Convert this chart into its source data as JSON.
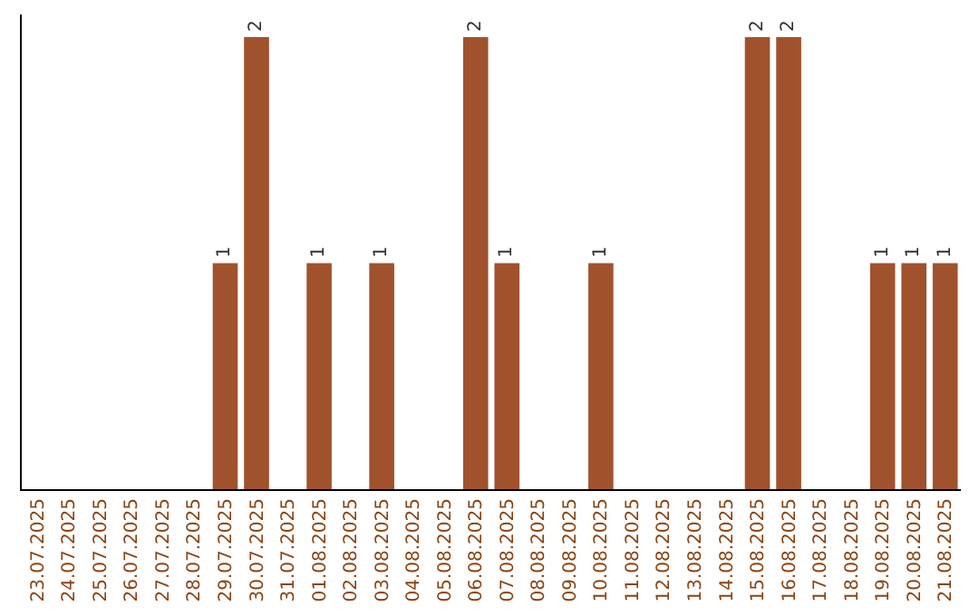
{
  "chart_data": {
    "type": "bar",
    "categories": [
      "23.07.2025",
      "24.07.2025",
      "25.07.2025",
      "26.07.2025",
      "27.07.2025",
      "28.07.2025",
      "29.07.2025",
      "30.07.2025",
      "31.07.2025",
      "01.08.2025",
      "02.08.2025",
      "03.08.2025",
      "04.08.2025",
      "05.08.2025",
      "06.08.2025",
      "07.08.2025",
      "08.08.2025",
      "09.08.2025",
      "10.08.2025",
      "11.08.2025",
      "12.08.2025",
      "13.08.2025",
      "14.08.2025",
      "15.08.2025",
      "16.08.2025",
      "17.08.2025",
      "18.08.2025",
      "19.08.2025",
      "20.08.2025",
      "21.08.2025"
    ],
    "values": [
      0,
      0,
      0,
      0,
      0,
      0,
      1,
      2,
      0,
      1,
      0,
      1,
      0,
      0,
      2,
      1,
      0,
      0,
      1,
      0,
      0,
      0,
      0,
      2,
      2,
      0,
      0,
      1,
      1,
      1
    ],
    "value_labels": [
      null,
      null,
      null,
      null,
      null,
      null,
      "1",
      "2",
      null,
      "1",
      null,
      "1",
      null,
      null,
      "2",
      "1",
      null,
      null,
      "1",
      null,
      null,
      null,
      null,
      "2",
      "2",
      null,
      null,
      "1",
      "1",
      "1"
    ],
    "color": "#a0522d",
    "ylim": [
      0,
      2.1
    ],
    "tick_labels": "x",
    "legend": false
  }
}
